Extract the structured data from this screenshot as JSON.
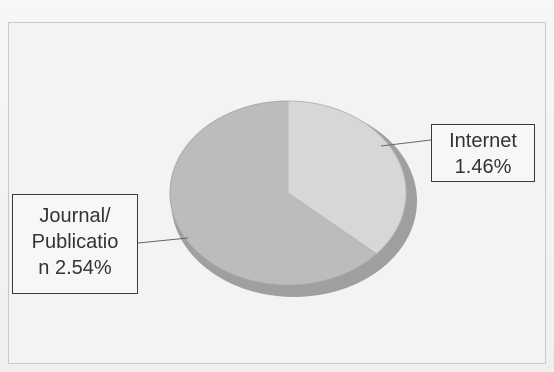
{
  "chart_data": {
    "type": "pie",
    "slices": [
      {
        "label": "Internet 1.46%",
        "value": 1.46,
        "color": "#d7d7d7"
      },
      {
        "label": "Journal/ Publicatio n 2.54%",
        "value": 2.54,
        "color": "#bcbcbc"
      }
    ],
    "labels": {
      "internet": "Internet\n1.46%",
      "journal": "Journal/\nPublicatio\nn 2.54%"
    },
    "title": "",
    "legend": "none"
  },
  "colors": {
    "frame_border": "#c9c9c9",
    "pie_edge": "#9f9f9f",
    "leader_line": "#666666"
  }
}
